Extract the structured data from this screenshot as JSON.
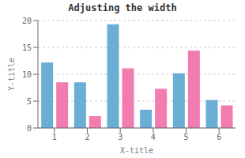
{
  "chart_data": {
    "type": "bar",
    "title": "Adjusting the width",
    "xlabel": "X-title",
    "ylabel": "Y-title",
    "categories": [
      "1",
      "2",
      "3",
      "4",
      "5",
      "6"
    ],
    "series": [
      {
        "color": "#6aaed6",
        "values": [
          12.2,
          8.5,
          19.3,
          3.4,
          10.2,
          5.2
        ]
      },
      {
        "color": "#f07cb0",
        "values": [
          8.5,
          2.2,
          11.1,
          7.3,
          14.4,
          4.2
        ]
      }
    ],
    "ylim": [
      0,
      20
    ],
    "yticks": [
      0,
      5,
      10,
      15,
      20
    ],
    "grid": true
  }
}
